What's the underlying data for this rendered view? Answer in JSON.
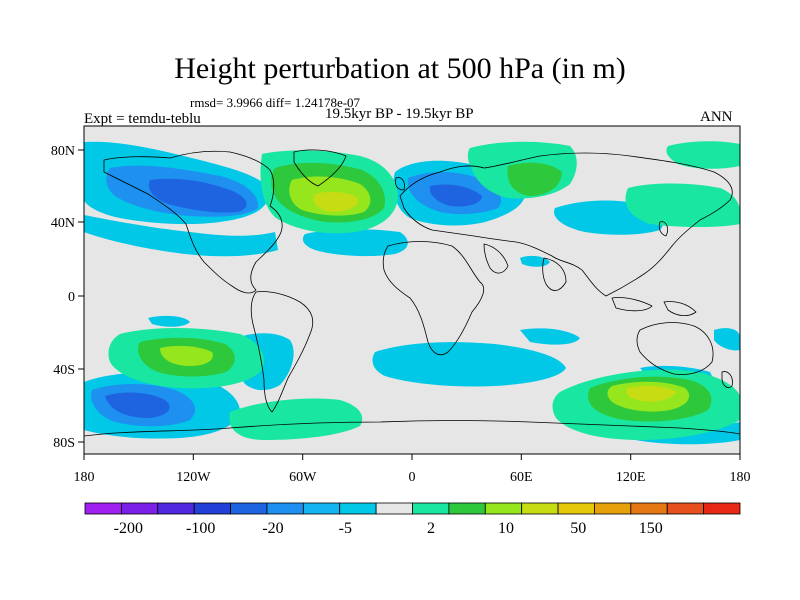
{
  "title": "Height perturbation at 500 hPa (in m)",
  "stats": "rmsd= 3.9966 diff= 1.24178e-07",
  "experiment": "Expt = temdu-teblu",
  "period": "19.5kyr BP - 19.5kyr BP",
  "season": "ANN",
  "map": {
    "lon_ticks": [
      "180",
      "120W",
      "60W",
      "0",
      "60E",
      "120E",
      "180"
    ],
    "lat_ticks": [
      "80N",
      "40N",
      "0",
      "40S",
      "80S"
    ]
  },
  "colorbar": {
    "labels": [
      "-200",
      "-100",
      "-20",
      "-5",
      "2",
      "10",
      "50",
      "150"
    ],
    "colors": [
      "#a020f0",
      "#7b20e8",
      "#5028e0",
      "#2040d8",
      "#1e64e0",
      "#1e90f0",
      "#14b4f0",
      "#00c8e6",
      "#e6e6e6",
      "#19e6a0",
      "#2ec83c",
      "#96e61e",
      "#c8dc14",
      "#e6c80a",
      "#e6a00a",
      "#e67814",
      "#e6501e",
      "#e62814"
    ]
  },
  "colors": {
    "land_background": "#e6e6e6",
    "coast": "#000000"
  }
}
